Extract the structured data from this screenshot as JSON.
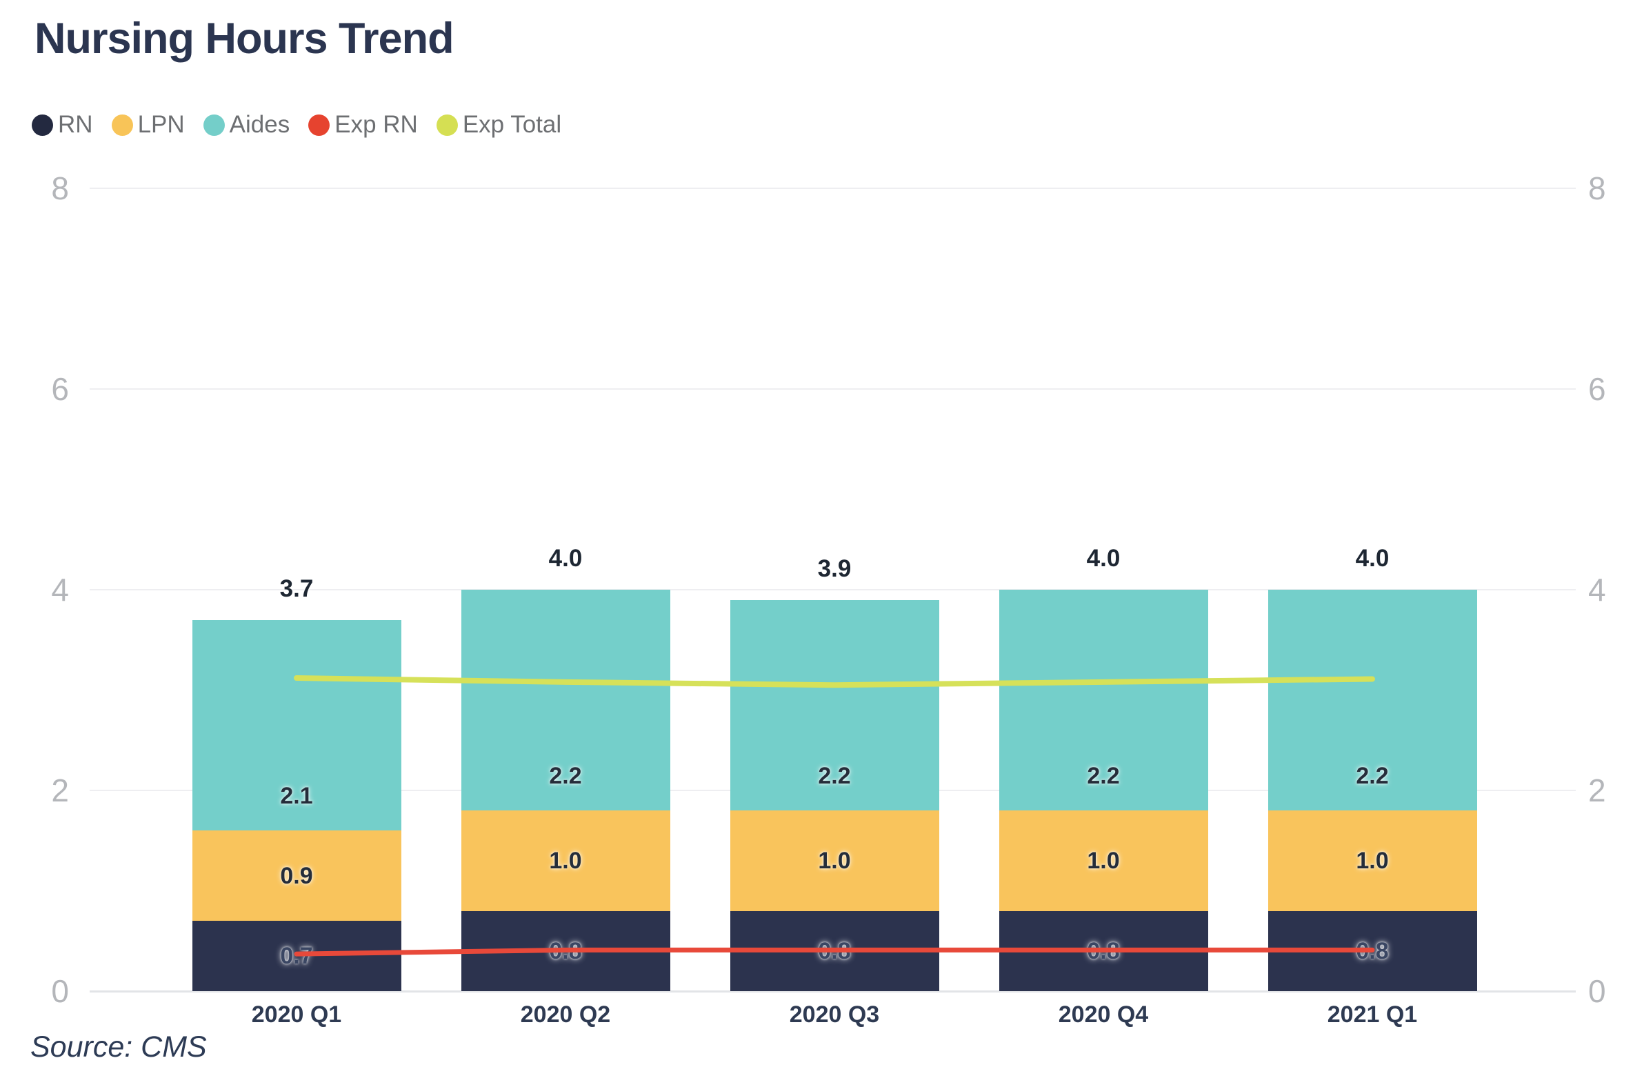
{
  "title": "Nursing Hours Trend",
  "source_note": "Source: CMS",
  "colors": {
    "title_text": "#2b3550",
    "legend_text": "#6d6f72",
    "axis_tick_text": "#b4b6ba",
    "x_tick_text": "#2e3a52",
    "gridline": "#eeeef1"
  },
  "chart_data": {
    "type": "bar",
    "subtype": "stacked-bars-with-overlay-lines",
    "title": "Nursing Hours Trend",
    "categories": [
      "2020 Q1",
      "2020 Q2",
      "2020 Q3",
      "2020 Q4",
      "2021 Q1"
    ],
    "series": [
      {
        "name": "RN",
        "type": "bar",
        "color": "#2c334e",
        "legend_dot_color": "#232940",
        "values": [
          0.7,
          0.8,
          0.8,
          0.8,
          0.8
        ]
      },
      {
        "name": "LPN",
        "type": "bar",
        "color": "#f9c45c",
        "legend_dot_color": "#f8c458",
        "values": [
          0.9,
          1.0,
          1.0,
          1.0,
          1.0
        ]
      },
      {
        "name": "Aides",
        "type": "bar",
        "color": "#74cfca",
        "legend_dot_color": "#74cec9",
        "values": [
          2.1,
          2.2,
          2.2,
          2.2,
          2.2
        ]
      },
      {
        "name": "Exp RN",
        "type": "line",
        "color": "#e8493a",
        "legend_dot_color": "#e6432f",
        "values": [
          0.37,
          0.41,
          0.41,
          0.41,
          0.41
        ]
      },
      {
        "name": "Exp Total",
        "type": "line",
        "color": "#d6e159",
        "legend_dot_color": "#d5df53",
        "values": [
          3.12,
          3.08,
          3.05,
          3.08,
          3.11
        ]
      }
    ],
    "stack_totals": [
      3.7,
      4.0,
      3.9,
      4.0,
      4.0
    ],
    "stacked": true,
    "ylim": [
      0,
      8
    ],
    "yticks": [
      0,
      2,
      4,
      6,
      8
    ],
    "y_axis_sides": [
      "left",
      "right"
    ],
    "grid": true,
    "legend_position": "top-left",
    "bar_label_format": "0.0"
  }
}
